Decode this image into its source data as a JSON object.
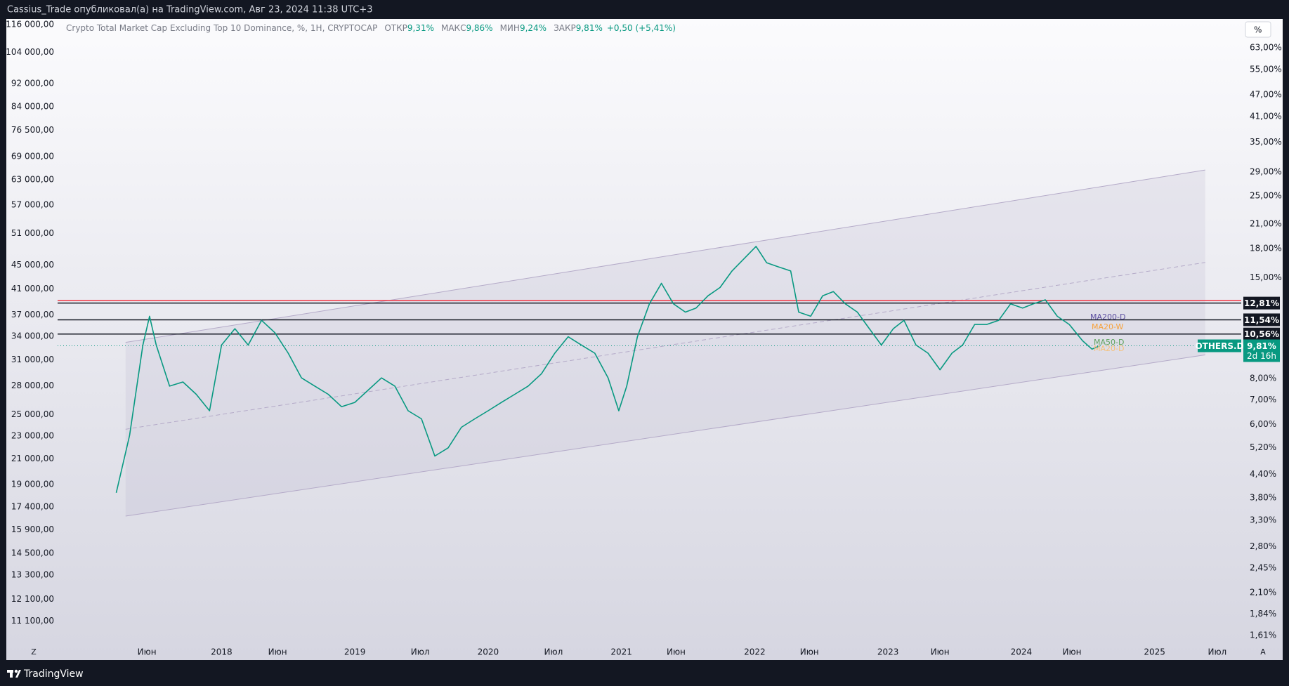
{
  "header": {
    "text": "Cassius_Trade опубликовал(а) на TradingView.com, Авг 23, 2024 11:38 UTC+3"
  },
  "chart_data": {
    "type": "line",
    "title": "Crypto Total Market Cap Excluding Top 10 Dominance, %, 1H, CRYPTOCAP",
    "legend": [
      {
        "label": "ОТКР",
        "value": "9,31%"
      },
      {
        "label": "МАКС",
        "value": "9,86%"
      },
      {
        "label": "МИН",
        "value": "9,24%"
      },
      {
        "label": "ЗАКР",
        "value": "9,81%"
      }
    ],
    "change": "+0,50 (+5,41%)",
    "log_scale": true,
    "grid": false,
    "xlim": [
      2016.77,
      2025.65
    ],
    "xticks": [
      {
        "value": 2017.44,
        "label": "Июн"
      },
      {
        "value": 2018,
        "label": "2018"
      },
      {
        "value": 2018.42,
        "label": "Июн"
      },
      {
        "value": 2019,
        "label": "2019"
      },
      {
        "value": 2019.49,
        "label": "Июл"
      },
      {
        "value": 2020,
        "label": "2020"
      },
      {
        "value": 2020.49,
        "label": "Июл"
      },
      {
        "value": 2021,
        "label": "2021"
      },
      {
        "value": 2021.41,
        "label": "Июн"
      },
      {
        "value": 2022,
        "label": "2022"
      },
      {
        "value": 2022.41,
        "label": "Июн"
      },
      {
        "value": 2023,
        "label": "2023"
      },
      {
        "value": 2023.39,
        "label": "Июн"
      },
      {
        "value": 2024,
        "label": "2024"
      },
      {
        "value": 2024.38,
        "label": "Июн"
      },
      {
        "value": 2025,
        "label": "2025"
      },
      {
        "value": 2025.47,
        "label": "Июл"
      }
    ],
    "ylim": [
      1.54,
      74.8
    ],
    "yticks": [
      {
        "value": 63,
        "label": "63,00%"
      },
      {
        "value": 55,
        "label": "55,00%"
      },
      {
        "value": 47,
        "label": "47,00%"
      },
      {
        "value": 41,
        "label": "41,00%"
      },
      {
        "value": 35,
        "label": "35,00%"
      },
      {
        "value": 29,
        "label": "29,00%"
      },
      {
        "value": 25,
        "label": "25,00%"
      },
      {
        "value": 21,
        "label": "21,00%"
      },
      {
        "value": 18,
        "label": "18,00%"
      },
      {
        "value": 15,
        "label": "15,00%"
      },
      {
        "value": 8,
        "label": "8,00%"
      },
      {
        "value": 7,
        "label": "7,00%"
      },
      {
        "value": 6,
        "label": "6,00%"
      },
      {
        "value": 5.2,
        "label": "5,20%"
      },
      {
        "value": 4.4,
        "label": "4,40%"
      },
      {
        "value": 3.8,
        "label": "3,80%"
      },
      {
        "value": 3.3,
        "label": "3,30%"
      },
      {
        "value": 2.8,
        "label": "2,80%"
      },
      {
        "value": 2.45,
        "label": "2,45%"
      },
      {
        "value": 2.1,
        "label": "2,10%"
      },
      {
        "value": 1.84,
        "label": "1,84%"
      },
      {
        "value": 1.61,
        "label": "1,61%"
      }
    ],
    "y2lim": [
      10205,
      117900
    ],
    "y2ticks": [
      {
        "value": 116000,
        "label": "116 000,00"
      },
      {
        "value": 104000,
        "label": "104 000,00"
      },
      {
        "value": 92000,
        "label": "92 000,00"
      },
      {
        "value": 84000,
        "label": "84 000,00"
      },
      {
        "value": 76500,
        "label": "76 500,00"
      },
      {
        "value": 69000,
        "label": "69 000,00"
      },
      {
        "value": 63000,
        "label": "63 000,00"
      },
      {
        "value": 57000,
        "label": "57 000,00"
      },
      {
        "value": 51000,
        "label": "51 000,00"
      },
      {
        "value": 45000,
        "label": "45 000,00"
      },
      {
        "value": 41000,
        "label": "41 000,00"
      },
      {
        "value": 37000,
        "label": "37 000,00"
      },
      {
        "value": 34000,
        "label": "34 000,00"
      },
      {
        "value": 31000,
        "label": "31 000,00"
      },
      {
        "value": 28000,
        "label": "28 000,00"
      },
      {
        "value": 25000,
        "label": "25 000,00"
      },
      {
        "value": 23000,
        "label": "23 000,00"
      },
      {
        "value": 21000,
        "label": "21 000,00"
      },
      {
        "value": 19000,
        "label": "19 000,00"
      },
      {
        "value": 17400,
        "label": "17 400,00"
      },
      {
        "value": 15900,
        "label": "15 900,00"
      },
      {
        "value": 14500,
        "label": "14 500,00"
      },
      {
        "value": 13300,
        "label": "13 300,00"
      },
      {
        "value": 12100,
        "label": "12 100,00"
      },
      {
        "value": 11100,
        "label": "11 100,00"
      }
    ],
    "series": [
      {
        "name": "OTHERS.D",
        "color": "#089981",
        "x": [
          2017.21,
          2017.31,
          2017.41,
          2017.46,
          2017.51,
          2017.61,
          2017.71,
          2017.81,
          2017.91,
          2018.0,
          2018.1,
          2018.2,
          2018.3,
          2018.4,
          2018.5,
          2018.6,
          2018.7,
          2018.8,
          2018.9,
          2019.0,
          2019.1,
          2019.2,
          2019.3,
          2019.4,
          2019.5,
          2019.6,
          2019.7,
          2019.8,
          2019.9,
          2020.0,
          2020.1,
          2020.2,
          2020.3,
          2020.4,
          2020.5,
          2020.6,
          2020.7,
          2020.8,
          2020.9,
          2020.98,
          2021.04,
          2021.12,
          2021.21,
          2021.3,
          2021.39,
          2021.48,
          2021.56,
          2021.65,
          2021.74,
          2021.83,
          2021.92,
          2022.01,
          2022.09,
          2022.18,
          2022.27,
          2022.33,
          2022.42,
          2022.51,
          2022.59,
          2022.68,
          2022.77,
          2022.86,
          2022.95,
          2023.04,
          2023.12,
          2023.21,
          2023.3,
          2023.39,
          2023.48,
          2023.56,
          2023.65,
          2023.74,
          2023.83,
          2023.92,
          2024.01,
          2024.09,
          2024.18,
          2024.27,
          2024.36,
          2024.46,
          2024.53,
          2024.59
        ],
        "values": [
          3.92,
          5.61,
          9.86,
          11.8,
          9.86,
          7.63,
          7.83,
          7.25,
          6.54,
          9.86,
          10.92,
          9.86,
          11.5,
          10.65,
          9.37,
          8.03,
          7.63,
          7.25,
          6.71,
          6.89,
          7.44,
          8.03,
          7.63,
          6.54,
          6.22,
          4.93,
          5.19,
          5.9,
          6.22,
          6.54,
          6.89,
          7.25,
          7.63,
          8.24,
          9.37,
          10.38,
          9.86,
          9.37,
          8.03,
          6.54,
          7.63,
          10.38,
          12.75,
          14.49,
          12.75,
          12.11,
          12.42,
          13.41,
          14.12,
          15.65,
          16.9,
          18.25,
          16.47,
          16.05,
          15.65,
          12.11,
          11.8,
          13.41,
          13.76,
          12.75,
          12.11,
          10.92,
          9.86,
          10.92,
          11.5,
          9.86,
          9.37,
          8.45,
          9.37,
          9.86,
          11.21,
          11.21,
          11.5,
          12.75,
          12.42,
          12.75,
          13.07,
          11.8,
          11.21,
          10.12,
          9.61,
          9.81
        ]
      }
    ],
    "channel": {
      "color": "#b4aac8",
      "upper": {
        "x": [
          2017.28,
          2025.38
        ],
        "values": [
          10.02,
          29.39
        ]
      },
      "lower": {
        "x": [
          2017.28,
          2025.38
        ],
        "values": [
          3.39,
          9.27
        ]
      }
    },
    "levels": [
      {
        "value": 13.02,
        "color": "#f23645"
      },
      {
        "value": 12.81,
        "label": "12,81%",
        "color": "#131722"
      },
      {
        "value": 11.54,
        "label": "11,54%",
        "color": "#131722"
      },
      {
        "value": 10.56,
        "label": "10,56%",
        "color": "#131722"
      }
    ],
    "price_tag": {
      "value": 9.81,
      "label": "9,81%",
      "countdown": "2d 16h",
      "color": "#089981"
    },
    "annotations": [
      "MA200-D",
      "MA20-W",
      "MA50-D",
      "MA20-D"
    ]
  },
  "ui": {
    "percent_button": "%",
    "zoom_button": "Z",
    "auto_button": "A",
    "brand": "TradingView"
  }
}
